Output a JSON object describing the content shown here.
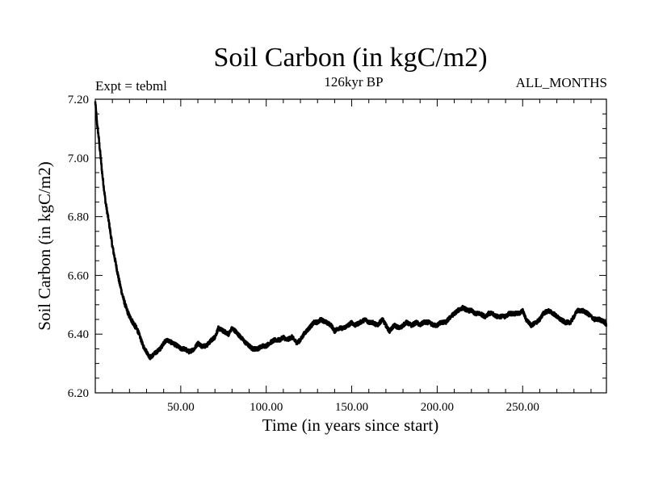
{
  "chart_data": {
    "type": "line",
    "title": "Soil Carbon (in kgC/m2)",
    "subtitle_left": "Expt = tebml",
    "subtitle_center": "126kyr BP",
    "subtitle_right": "ALL_MONTHS",
    "xlabel": "Time (in years since start)",
    "ylabel": "Soil Carbon (in kgC/m2)",
    "xlim": [
      0,
      299
    ],
    "ylim": [
      6.2,
      7.2
    ],
    "x_ticks": [
      50,
      100,
      150,
      200,
      250
    ],
    "x_tick_labels": [
      "50.00",
      "100.00",
      "150.00",
      "200.00",
      "250.00"
    ],
    "y_ticks": [
      6.2,
      6.4,
      6.6,
      6.8,
      7.0,
      7.2
    ],
    "y_tick_labels": [
      "6.20",
      "6.40",
      "6.60",
      "6.80",
      "7.00",
      "7.20"
    ],
    "series": [
      {
        "name": "Soil Carbon",
        "color": "#000000",
        "x": [
          0,
          1,
          2,
          3,
          4,
          5,
          6,
          8,
          10,
          12,
          14,
          16,
          18,
          20,
          22,
          25,
          28,
          30,
          32,
          34,
          36,
          38,
          40,
          42,
          45,
          48,
          50,
          52,
          55,
          58,
          60,
          62,
          65,
          68,
          70,
          72,
          75,
          78,
          80,
          82,
          85,
          88,
          90,
          92,
          95,
          98,
          100,
          102,
          105,
          108,
          110,
          112,
          115,
          118,
          120,
          122,
          125,
          128,
          130,
          132,
          135,
          138,
          140,
          142,
          145,
          148,
          150,
          152,
          155,
          158,
          160,
          162,
          165,
          168,
          170,
          172,
          175,
          178,
          180,
          182,
          185,
          188,
          190,
          192,
          195,
          198,
          200,
          202,
          205,
          208,
          210,
          212,
          215,
          218,
          220,
          222,
          225,
          228,
          230,
          232,
          235,
          238,
          240,
          242,
          245,
          248,
          250,
          252,
          255,
          258,
          260,
          262,
          265,
          268,
          270,
          272,
          275,
          278,
          280,
          282,
          285,
          288,
          290,
          292,
          295,
          298,
          299
        ],
        "values": [
          7.19,
          7.12,
          7.07,
          7.01,
          6.95,
          6.9,
          6.85,
          6.78,
          6.7,
          6.64,
          6.58,
          6.53,
          6.49,
          6.46,
          6.44,
          6.41,
          6.36,
          6.34,
          6.32,
          6.33,
          6.34,
          6.35,
          6.37,
          6.38,
          6.37,
          6.36,
          6.35,
          6.35,
          6.34,
          6.35,
          6.37,
          6.36,
          6.36,
          6.38,
          6.39,
          6.42,
          6.41,
          6.4,
          6.42,
          6.41,
          6.39,
          6.37,
          6.36,
          6.35,
          6.35,
          6.36,
          6.36,
          6.37,
          6.38,
          6.38,
          6.39,
          6.38,
          6.39,
          6.37,
          6.38,
          6.4,
          6.42,
          6.44,
          6.44,
          6.45,
          6.44,
          6.43,
          6.41,
          6.42,
          6.42,
          6.43,
          6.44,
          6.43,
          6.44,
          6.45,
          6.44,
          6.44,
          6.43,
          6.45,
          6.43,
          6.41,
          6.43,
          6.42,
          6.43,
          6.44,
          6.43,
          6.44,
          6.43,
          6.44,
          6.44,
          6.43,
          6.43,
          6.44,
          6.44,
          6.46,
          6.47,
          6.48,
          6.49,
          6.48,
          6.48,
          6.47,
          6.47,
          6.46,
          6.47,
          6.47,
          6.46,
          6.46,
          6.46,
          6.47,
          6.47,
          6.47,
          6.48,
          6.45,
          6.43,
          6.44,
          6.45,
          6.47,
          6.48,
          6.47,
          6.46,
          6.45,
          6.44,
          6.44,
          6.46,
          6.48,
          6.48,
          6.47,
          6.46,
          6.45,
          6.45,
          6.44,
          6.43
        ]
      }
    ]
  }
}
